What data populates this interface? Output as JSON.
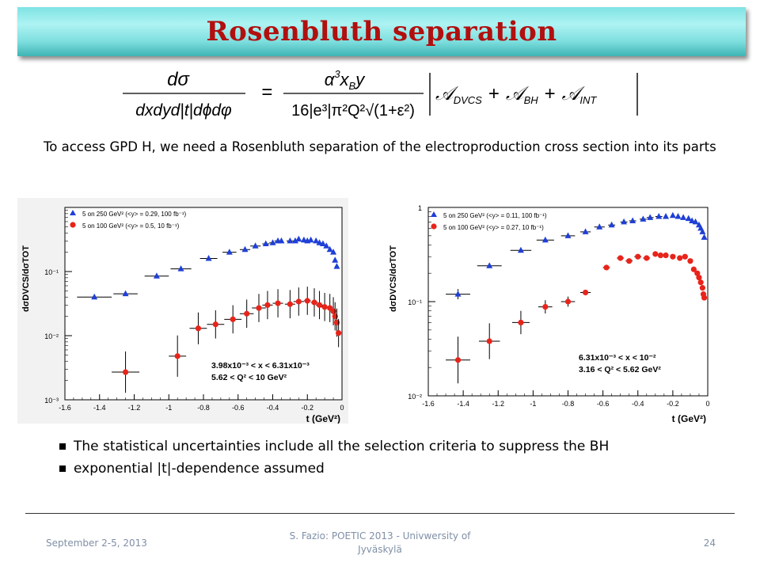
{
  "slide": {
    "title": "Rosenbluth separation",
    "formula": {
      "lhs_num": "dσ",
      "lhs_den": "dxdyd|t|dϕdφ",
      "eq": "=",
      "rhs_num_alpha": "α",
      "rhs_num_exp": "3",
      "rhs_num_rest": "x",
      "rhs_num_sub": "B",
      "rhs_num_y": "y",
      "rhs_den": "16|e³|π²Q²√(1+ε²)",
      "amp_parts": [
        "𝒜",
        "DVCS",
        "+",
        "𝒜",
        "BH",
        "+",
        "𝒜",
        "INT"
      ]
    },
    "intro": "To access GPD H, we need a Rosenbluth separation of the electroproduction cross section into its parts",
    "bullets": [
      "The statistical uncertainties include all the selection criteria to suppress the BH",
      "exponential |t|-dependence assumed"
    ],
    "footer": {
      "date": "September 2-5, 2013",
      "center": "S. Fazio: POETIC 2013 - Univwersity of Jyväskylä",
      "page": "24"
    }
  },
  "colors": {
    "title": "#b20f0f",
    "series_blue": "#1f3fd6",
    "series_red": "#e8241a"
  },
  "chart_data": [
    {
      "type": "scatter",
      "xlabel": "t (GeV²)",
      "ylabel": "dσDVCS/dσTOT",
      "y_log": true,
      "ylim": [
        0.001,
        1
      ],
      "xlim": [
        -1.6,
        0
      ],
      "x_ticks": [
        "-1.6",
        "-1.4",
        "-1.2",
        "-1",
        "-0.8",
        "-0.6",
        "-0.4",
        "-0.2",
        "0"
      ],
      "y_ticks": [
        "10⁻³",
        "10⁻²",
        "10⁻¹"
      ],
      "annotation": [
        "3.98x10⁻³ < x < 6.31x10⁻³",
        "5.62 < Q² < 10 GeV²"
      ],
      "series": [
        {
          "name": "5 on 250 GeV² (<y> = 0.29, 100 fb⁻¹)",
          "marker": "triangle",
          "x": [
            -1.43,
            -1.25,
            -1.07,
            -0.93,
            -0.77,
            -0.65,
            -0.56,
            -0.5,
            -0.44,
            -0.4,
            -0.37,
            -0.35,
            -0.3,
            -0.27,
            -0.25,
            -0.22,
            -0.2,
            -0.18,
            -0.15,
            -0.13,
            -0.11,
            -0.09,
            -0.07,
            -0.05,
            -0.04,
            -0.03
          ],
          "y": [
            0.04,
            0.045,
            0.085,
            0.11,
            0.16,
            0.2,
            0.22,
            0.25,
            0.27,
            0.28,
            0.3,
            0.3,
            0.3,
            0.3,
            0.32,
            0.31,
            0.3,
            0.31,
            0.3,
            0.28,
            0.27,
            0.25,
            0.22,
            0.2,
            0.15,
            0.12
          ],
          "xerr": [
            0.1,
            0.07,
            0.07,
            0.06,
            0.05,
            0.04,
            0.03,
            0.03,
            0.02,
            0.02,
            0.02,
            0.01,
            0.02,
            0.01,
            0.01,
            0.01,
            0.01,
            0.01,
            0.01,
            0.01,
            0.01,
            0.01,
            0.01,
            0.01,
            0.01,
            0.01
          ],
          "yerr": [
            0,
            0,
            0,
            0,
            0,
            0,
            0,
            0,
            0,
            0,
            0,
            0,
            0,
            0,
            0,
            0,
            0,
            0,
            0,
            0,
            0,
            0,
            0,
            0,
            0,
            0
          ]
        },
        {
          "name": "5 on 100 GeV² (<y> = 0.5, 10 fb⁻¹)",
          "marker": "circle",
          "x": [
            -1.25,
            -0.95,
            -0.83,
            -0.73,
            -0.63,
            -0.55,
            -0.48,
            -0.43,
            -0.37,
            -0.3,
            -0.25,
            -0.2,
            -0.16,
            -0.13,
            -0.1,
            -0.07,
            -0.05,
            -0.04,
            -0.03,
            -0.02
          ],
          "y": [
            0.0027,
            0.0048,
            0.013,
            0.015,
            0.018,
            0.022,
            0.027,
            0.03,
            0.032,
            0.031,
            0.034,
            0.035,
            0.033,
            0.03,
            0.028,
            0.027,
            0.024,
            0.02,
            0.016,
            0.011
          ],
          "xerr": [
            0.08,
            0.05,
            0.05,
            0.05,
            0.05,
            0.04,
            0.04,
            0.03,
            0.03,
            0.03,
            0.03,
            0.02,
            0.02,
            0.02,
            0.02,
            0.01,
            0.01,
            0.01,
            0.01,
            0.01
          ],
          "yerr": [
            0.5,
            0.5,
            0.35,
            0.3,
            0.3,
            0.3,
            0.3,
            0.3,
            0.3,
            0.3,
            0.3,
            0.3,
            0.3,
            0.3,
            0.3,
            0.3,
            0.3,
            0.3,
            0.3,
            0.3
          ]
        }
      ]
    },
    {
      "type": "scatter",
      "xlabel": "t (GeV²)",
      "ylabel": "dσDVCS/dσTOT",
      "y_log": true,
      "ylim": [
        0.01,
        1
      ],
      "xlim": [
        -1.6,
        0
      ],
      "x_ticks": [
        "-1.6",
        "-1.4",
        "-1.2",
        "-1",
        "-0.8",
        "-0.6",
        "-0.4",
        "-0.2",
        "0"
      ],
      "y_ticks": [
        "10⁻²",
        "10⁻¹",
        "1"
      ],
      "annotation": [
        "6.31x10⁻³ < x < 10⁻²",
        "3.16 < Q² < 5.62 GeV²"
      ],
      "series": [
        {
          "name": "5 on 250 GeV² (<y> = 0.11, 100 fb⁻¹)",
          "marker": "triangle",
          "x": [
            -1.43,
            -1.25,
            -1.07,
            -0.93,
            -0.8,
            -0.7,
            -0.62,
            -0.55,
            -0.48,
            -0.43,
            -0.37,
            -0.33,
            -0.28,
            -0.24,
            -0.2,
            -0.17,
            -0.14,
            -0.11,
            -0.09,
            -0.07,
            -0.05,
            -0.04,
            -0.03,
            -0.02
          ],
          "y": [
            0.12,
            0.24,
            0.35,
            0.45,
            0.5,
            0.55,
            0.62,
            0.65,
            0.7,
            0.72,
            0.75,
            0.78,
            0.8,
            0.8,
            0.82,
            0.8,
            0.78,
            0.76,
            0.72,
            0.7,
            0.65,
            0.6,
            0.55,
            0.48
          ],
          "xerr": [
            0.07,
            0.07,
            0.06,
            0.05,
            0.04,
            0.03,
            0.03,
            0.02,
            0.02,
            0.02,
            0.02,
            0.02,
            0.02,
            0.01,
            0.01,
            0.01,
            0.01,
            0.01,
            0.01,
            0.01,
            0.01,
            0.01,
            0.01,
            0.01
          ],
          "yerr": [
            0.06,
            0,
            0,
            0,
            0,
            0,
            0,
            0,
            0,
            0,
            0,
            0,
            0,
            0,
            0,
            0,
            0,
            0,
            0,
            0,
            0,
            0,
            0,
            0
          ]
        },
        {
          "name": "5 on 100 GeV² (<y> = 0.27, 10 fb⁻¹)",
          "marker": "circle",
          "x": [
            -1.43,
            -1.25,
            -1.07,
            -0.93,
            -0.8,
            -0.7,
            -0.58,
            -0.5,
            -0.45,
            -0.4,
            -0.35,
            -0.3,
            -0.27,
            -0.24,
            -0.2,
            -0.16,
            -0.13,
            -0.1,
            -0.08,
            -0.06,
            -0.05,
            -0.04,
            -0.03,
            -0.025,
            -0.02
          ],
          "y": [
            0.024,
            0.038,
            0.06,
            0.088,
            0.1,
            0.125,
            0.23,
            0.29,
            0.27,
            0.3,
            0.29,
            0.32,
            0.31,
            0.31,
            0.3,
            0.29,
            0.3,
            0.27,
            0.22,
            0.2,
            0.18,
            0.16,
            0.14,
            0.12,
            0.11
          ],
          "xerr": [
            0.07,
            0.06,
            0.05,
            0.04,
            0.04,
            0.03,
            0.02,
            0.02,
            0.02,
            0.02,
            0.02,
            0.01,
            0.01,
            0.01,
            0.01,
            0.01,
            0.01,
            0.01,
            0.01,
            0.01,
            0.01,
            0.01,
            0.01,
            0.01,
            0.01
          ],
          "yerr": [
            0.35,
            0.25,
            0.15,
            0.08,
            0.06,
            0,
            0,
            0,
            0,
            0,
            0,
            0,
            0,
            0,
            0,
            0,
            0,
            0,
            0,
            0,
            0,
            0,
            0,
            0,
            0
          ]
        }
      ]
    }
  ]
}
